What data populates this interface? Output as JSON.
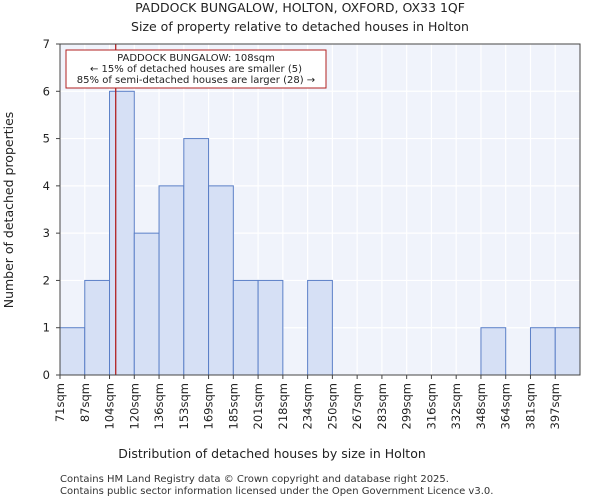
{
  "chart_data": {
    "type": "bar",
    "title": "PADDOCK BUNGALOW, HOLTON, OXFORD, OX33 1QF",
    "subtitle": "Size of property relative to detached houses in Holton",
    "xlabel": "Distribution of detached houses by size in Holton",
    "ylabel": "Number of detached properties",
    "categories": [
      "71sqm",
      "87sqm",
      "104sqm",
      "120sqm",
      "136sqm",
      "153sqm",
      "169sqm",
      "185sqm",
      "201sqm",
      "218sqm",
      "234sqm",
      "250sqm",
      "267sqm",
      "283sqm",
      "299sqm",
      "316sqm",
      "332sqm",
      "348sqm",
      "364sqm",
      "381sqm",
      "397sqm"
    ],
    "values": [
      1,
      2,
      6,
      3,
      4,
      5,
      4,
      2,
      2,
      0,
      2,
      0,
      0,
      0,
      0,
      0,
      0,
      1,
      0,
      1,
      1
    ],
    "ylim": [
      0,
      7
    ],
    "yticks": [
      0,
      1,
      2,
      3,
      4,
      5,
      6,
      7
    ],
    "grid": true,
    "bar_color": "#d6e0f5",
    "bar_edge_color": "#5b7fc7",
    "marker": {
      "position_bins": 2.25,
      "color": "#b22222",
      "annotation": [
        "PADDOCK BUNGALOW: 108sqm",
        "← 15% of detached houses are smaller (5)",
        "85% of semi-detached houses are larger (28) →"
      ]
    },
    "footer": [
      "Contains HM Land Registry data © Crown copyright and database right 2025.",
      "Contains public sector information licensed under the Open Government Licence v3.0."
    ]
  }
}
